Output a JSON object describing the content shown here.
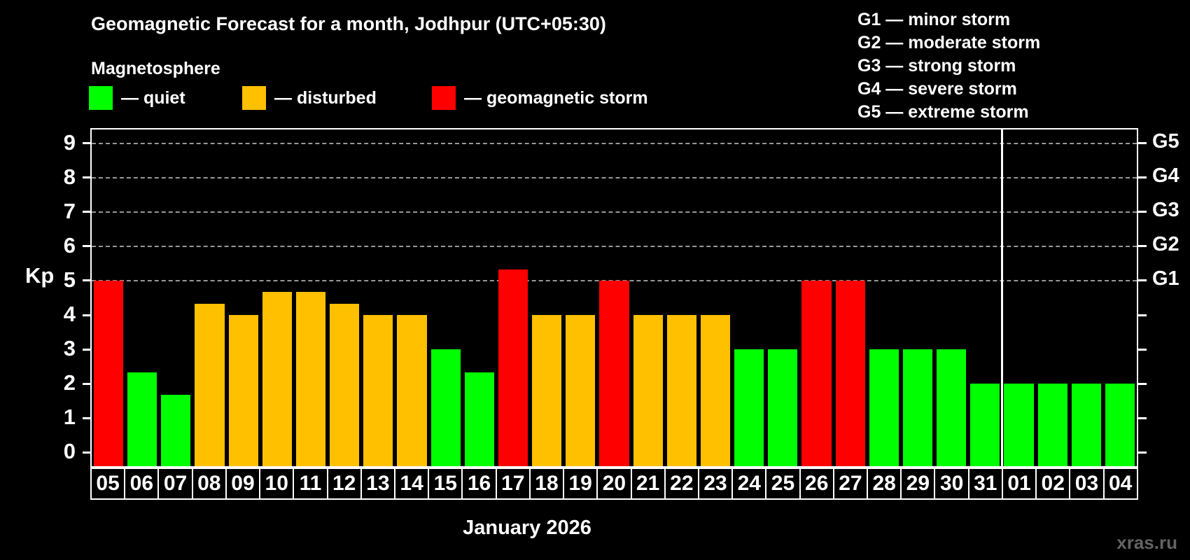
{
  "title": "Geomagnetic Forecast for a month, Jodhpur (UTC+05:30)",
  "subtitle": "Magnetosphere",
  "legend": {
    "items": [
      {
        "label": "— quiet",
        "status": "quiet"
      },
      {
        "label": "— disturbed",
        "status": "disturbed"
      },
      {
        "label": "— geomagnetic storm",
        "status": "storm"
      }
    ]
  },
  "g_legend": {
    "items": [
      "G1 — minor storm",
      "G2 — moderate storm",
      "G3 — strong storm",
      "G4 — severe storm",
      "G5 — extreme storm"
    ]
  },
  "colors": {
    "quiet": "#00ff00",
    "disturbed": "#ffc000",
    "storm": "#ff0000",
    "grid": "#989898",
    "frame": "#ffffff",
    "background": "#000000",
    "watermark": "#636363"
  },
  "chart_data": {
    "type": "bar",
    "title": "Geomagnetic Forecast for a month, Jodhpur (UTC+05:30)",
    "ylabel": "Kp",
    "xlabel": "January 2026",
    "ylim": [
      -0.4,
      9.4
    ],
    "yticks": [
      0,
      1,
      2,
      3,
      4,
      5,
      6,
      7,
      8,
      9
    ],
    "gridlines": [
      5,
      6,
      7,
      8,
      9
    ],
    "right_labels": [
      {
        "kp": 5,
        "label": "G1"
      },
      {
        "kp": 6,
        "label": "G2"
      },
      {
        "kp": 7,
        "label": "G3"
      },
      {
        "kp": 8,
        "label": "G4"
      },
      {
        "kp": 9,
        "label": "G5"
      }
    ],
    "legend_position": "top",
    "grid": "dashed horizontal at storm levels only",
    "month_separator_after_index": 26,
    "categories": [
      "05",
      "06",
      "07",
      "08",
      "09",
      "10",
      "11",
      "12",
      "13",
      "14",
      "15",
      "16",
      "17",
      "18",
      "19",
      "20",
      "21",
      "22",
      "23",
      "24",
      "25",
      "26",
      "27",
      "28",
      "29",
      "30",
      "31",
      "01",
      "02",
      "03",
      "04"
    ],
    "values": [
      5,
      2.33,
      1.67,
      4.33,
      4,
      4.67,
      4.67,
      4.33,
      4,
      4,
      3,
      2.33,
      5.33,
      4,
      4,
      5,
      4,
      4,
      4,
      3,
      3,
      5,
      5,
      3,
      3,
      3,
      2,
      2,
      2,
      2,
      2
    ],
    "statuses": [
      "storm",
      "quiet",
      "quiet",
      "disturbed",
      "disturbed",
      "disturbed",
      "disturbed",
      "disturbed",
      "disturbed",
      "disturbed",
      "quiet",
      "quiet",
      "storm",
      "disturbed",
      "disturbed",
      "storm",
      "disturbed",
      "disturbed",
      "disturbed",
      "quiet",
      "quiet",
      "storm",
      "storm",
      "quiet",
      "quiet",
      "quiet",
      "quiet",
      "quiet",
      "quiet",
      "quiet",
      "quiet"
    ]
  },
  "watermark": "xras.ru"
}
